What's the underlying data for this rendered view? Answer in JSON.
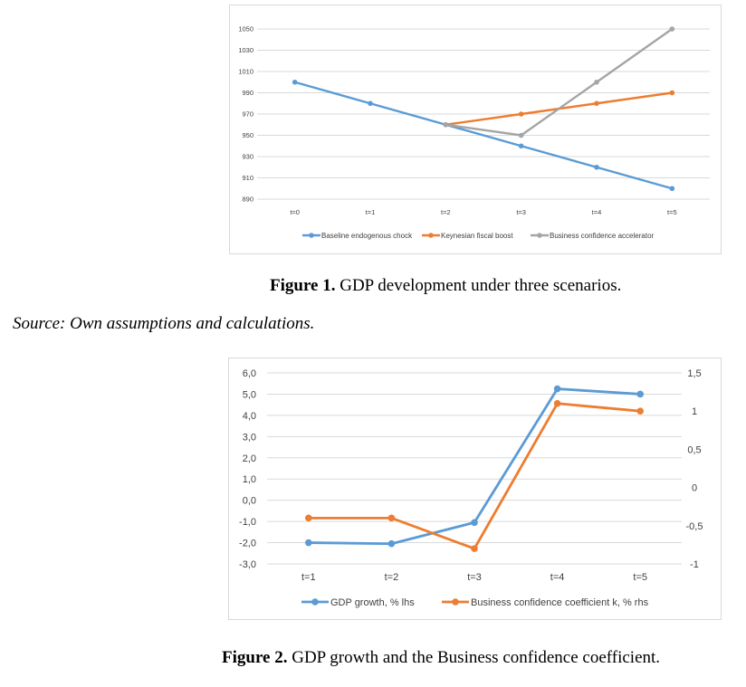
{
  "chart_data": [
    {
      "type": "line",
      "title": "",
      "xlabel": "",
      "ylabel": "",
      "categories": [
        "t=0",
        "t=1",
        "t=2",
        "t=3",
        "t=4",
        "t=5"
      ],
      "ylim": [
        890,
        1050
      ],
      "y_ticks": [
        "1050",
        "1030",
        "1010",
        "990",
        "970",
        "950",
        "930",
        "910",
        "890"
      ],
      "grid": true,
      "legend_position": "bottom",
      "series": [
        {
          "name": "Baseline endogenous chock",
          "color": "#5b9bd5",
          "values": [
            1000,
            980,
            960,
            940,
            920,
            900
          ]
        },
        {
          "name": "Keynesian fiscal boost",
          "color": "#ed7d31",
          "values": [
            null,
            null,
            960,
            970,
            980,
            990
          ]
        },
        {
          "name": "Business confidence accelerator",
          "color": "#a5a5a5",
          "values": [
            null,
            null,
            960,
            950,
            1000,
            1050
          ]
        }
      ]
    },
    {
      "type": "line",
      "title": "",
      "xlabel": "",
      "ylabel": "",
      "categories": [
        "t=1",
        "t=2",
        "t=3",
        "t=4",
        "t=5"
      ],
      "ylim": [
        -3,
        6
      ],
      "y_ticks": [
        "6,0",
        "5,0",
        "4,0",
        "3,0",
        "2,0",
        "1,0",
        "0,0",
        "-1,0",
        "-2,0",
        "-3,0"
      ],
      "y2lim": [
        -1,
        1.5
      ],
      "y2_ticks": [
        "1,5",
        "1",
        "0,5",
        "0",
        "-0,5",
        "-1"
      ],
      "grid": true,
      "legend_position": "bottom",
      "series": [
        {
          "name": "GDP growth, % lhs",
          "axis": "left",
          "color": "#5b9bd5",
          "values": [
            -2.0,
            -2.05,
            -1.05,
            5.25,
            5.0
          ]
        },
        {
          "name": "Business confidence coefficient k, % rhs",
          "axis": "right",
          "color": "#ed7d31",
          "values": [
            -0.4,
            -0.4,
            -0.8,
            1.1,
            1.0
          ]
        }
      ]
    }
  ],
  "captions": {
    "fig1_label": "Figure 1.",
    "fig1_text": " GDP development under three scenarios.",
    "source": "Source: Own assumptions and calculations.",
    "fig2_label": "Figure 2.",
    "fig2_text": " GDP growth and the Business confidence coefficient."
  }
}
